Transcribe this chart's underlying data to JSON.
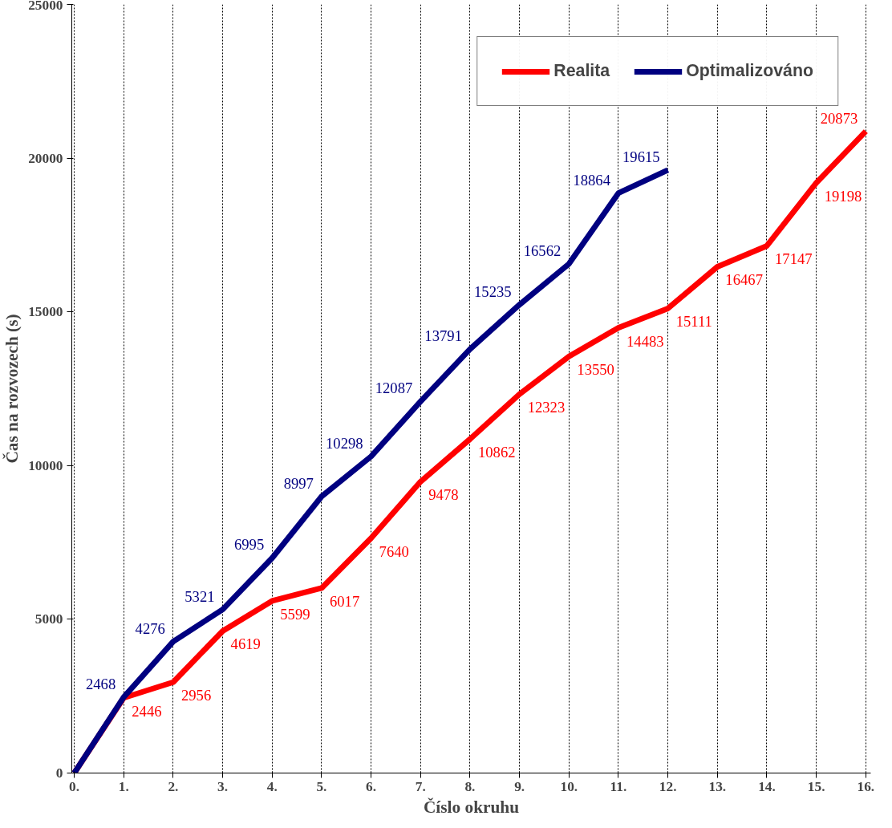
{
  "chart_data": {
    "type": "line",
    "categories": [
      "0.",
      "1.",
      "2.",
      "3.",
      "4.",
      "5.",
      "6.",
      "7.",
      "8.",
      "9.",
      "10.",
      "11.",
      "12.",
      "13.",
      "14.",
      "15.",
      "16."
    ],
    "ylabel": "Čas na rozvozech (s)",
    "xlabel": "Číslo okruhu",
    "ylim": [
      0,
      25000
    ],
    "yticks": [
      0,
      5000,
      10000,
      15000,
      20000,
      25000
    ],
    "series": [
      {
        "name": "Realita",
        "color": "#ff0000",
        "values": [
          0,
          2446,
          2956,
          4619,
          5599,
          6017,
          7640,
          9478,
          10862,
          12323,
          13550,
          14483,
          15111,
          16467,
          17147,
          19198,
          20873
        ],
        "value_labels": [
          null,
          "2446",
          "2956",
          "4619",
          "5599",
          "6017",
          "7640",
          "9478",
          "10862",
          "12323",
          "13550",
          "14483",
          "15111",
          "16467",
          "17147",
          "19198",
          "20873"
        ]
      },
      {
        "name": "Optimalizováno",
        "color": "#000080",
        "values": [
          0,
          2468,
          4276,
          5321,
          6995,
          8997,
          10298,
          12087,
          13791,
          15235,
          16562,
          18864,
          19615,
          null,
          null,
          null,
          null
        ],
        "value_labels": [
          null,
          "2468",
          "4276",
          "5321",
          "6995",
          "8997",
          "10298",
          "12087",
          "13791",
          "15235",
          "16562",
          "18864",
          "19615",
          null,
          null,
          null,
          null
        ]
      }
    ],
    "grid": "x",
    "legend": "top right",
    "line_style": "solid"
  }
}
